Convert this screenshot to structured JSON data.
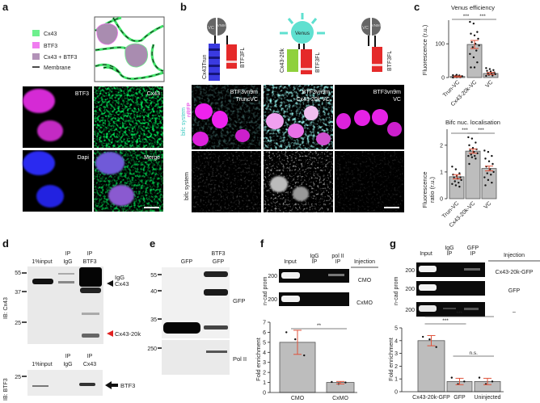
{
  "panels": {
    "a": {
      "label": "a",
      "legend": [
        {
          "text": "Cx43",
          "color": "#6ef08e"
        },
        {
          "text": "BTF3",
          "color": "#f07cf0"
        },
        {
          "text": "Cx43 + BTF3",
          "color": "#b292b8"
        },
        {
          "text": "Membrane",
          "color": "#111111"
        }
      ],
      "tiles": [
        "BTF3",
        "Cx43",
        "Dapi",
        "Merge"
      ]
    },
    "b": {
      "label": "b",
      "constructs": {
        "c1_left": "VC",
        "c1_right": "VN9m",
        "c1_bar1": "Cx43Trun",
        "c1_bar2": "BTF3FL",
        "venus": "Venus",
        "c2_bar1": "Cx43-20k",
        "c2_bar2": "BTF3FL",
        "c3_left": "VC",
        "c3_right": "VN9m",
        "c3_bar2": "BTF3FL"
      },
      "row_labels": {
        "bifc": "bifc system",
        "nrfp": "nRFP",
        "bifc2": "bifc system"
      },
      "tiles": [
        {
          "l1": "BTF3vn9m",
          "l2": "TruncVC"
        },
        {
          "l1": "BTF3vn9m",
          "l2": "Cx43-20k VC"
        },
        {
          "l1": "BTF3vn9m",
          "l2": "VC"
        }
      ]
    },
    "c": {
      "label": "c"
    },
    "d": {
      "label": "d",
      "top": {
        "lanes": [
          "1%input",
          "IP\nIgG",
          "IP\nBTF3"
        ],
        "lane1": "1%input",
        "lane2a": "IP",
        "lane2b": "IgG",
        "lane3a": "IP",
        "lane3b": "BTF3",
        "markers": [
          "55",
          "37",
          "25"
        ],
        "ib": "IB: Cx43",
        "igg": "IgG",
        "cx43": "Cx43",
        "cx43_20k": "Cx43-20k"
      },
      "bottom": {
        "lane1": "1%input",
        "lane2a": "IP",
        "lane2b": "IgG",
        "lane3a": "IP",
        "lane3b": "Cx43",
        "markers": [
          "25"
        ],
        "ib": "IB: BTF3",
        "btf3": "BTF3"
      }
    },
    "e": {
      "label": "e",
      "lane1": "GFP",
      "lane2a": "BTF3",
      "lane2b": "GFP",
      "markers": [
        "55",
        "40",
        "35",
        "250"
      ],
      "gfp": "GFP",
      "pol2": "Pol II"
    },
    "f": {
      "label": "f",
      "headers": {
        "input": "Input",
        "igg1": "IgG",
        "igg2": "IP",
        "pol1": "pol II",
        "pol2": "IP",
        "injection": "Injection"
      },
      "rows": [
        {
          "marker": "200",
          "injection": "CMO"
        },
        {
          "marker": "200",
          "injection": "CxMO"
        }
      ],
      "ylabel_gel": "n-cad prom"
    },
    "g": {
      "label": "g",
      "headers": {
        "input": "Input",
        "igg1": "IgG",
        "igg2": "IP",
        "gfp1": "GFP",
        "gfp2": "IP",
        "injection": "Injection"
      },
      "rows": [
        {
          "marker": "200",
          "injection": "Cx43-20k-GFP"
        },
        {
          "marker": "200",
          "injection": "GFP"
        },
        {
          "marker": "200",
          "injection": "–"
        }
      ],
      "ylabel_gel": "n-cad prom"
    }
  },
  "chart_data": [
    {
      "id": "c-top",
      "type": "bar",
      "title": "Venus efficiency",
      "ylabel": "Fluorescence (r.u.)",
      "categories": [
        "Trun-VC",
        "Cx43-20k-VC",
        "VC"
      ],
      "values": [
        3,
        98,
        12
      ],
      "error": [
        [
          1.5,
          4.5
        ],
        [
          86,
          110
        ],
        [
          9,
          15
        ]
      ],
      "points": [
        [
          0,
          1,
          1,
          2,
          2,
          3,
          3,
          4,
          4,
          5,
          6,
          7,
          8
        ],
        [
          165,
          160,
          135,
          130,
          125,
          115,
          105,
          100,
          95,
          90,
          80,
          70,
          60,
          45,
          30,
          30
        ],
        [
          28,
          25,
          22,
          20,
          18,
          15,
          13,
          12,
          10,
          8,
          6,
          5
        ]
      ],
      "yticks": [
        0,
        100
      ],
      "ylim": [
        0,
        170
      ],
      "significance": [
        {
          "from": 0,
          "to": 1,
          "label": "***"
        },
        {
          "from": 1,
          "to": 2,
          "label": "***"
        }
      ]
    },
    {
      "id": "c-bottom",
      "type": "bar",
      "title": "Bifc nuc. localisation",
      "ylabel": "Fluorescence ratio (r.u.)",
      "categories": [
        "Trun-VC",
        "Cx43-20k-VC",
        "VC"
      ],
      "values": [
        0.82,
        1.78,
        1.13
      ],
      "error": [
        [
          0.74,
          0.9
        ],
        [
          1.7,
          1.86
        ],
        [
          1.04,
          1.22
        ]
      ],
      "points": [
        [
          1.2,
          1.1,
          0.95,
          0.9,
          0.85,
          0.8,
          0.8,
          0.75,
          0.7,
          0.65,
          0.6,
          0.55,
          0.5,
          0.45
        ],
        [
          2.3,
          2.25,
          2.1,
          2.0,
          1.9,
          1.85,
          1.8,
          1.75,
          1.7,
          1.65,
          1.6,
          1.6,
          1.55,
          1.5,
          1.3
        ],
        [
          1.8,
          1.75,
          1.6,
          1.5,
          1.4,
          1.3,
          1.2,
          1.1,
          1.0,
          0.95,
          0.9,
          0.8,
          0.7,
          0.6,
          0.5
        ]
      ],
      "yticks": [
        0,
        1,
        2
      ],
      "ylim": [
        0,
        2.6
      ],
      "significance": [
        {
          "from": 0,
          "to": 1,
          "label": "***"
        },
        {
          "from": 1,
          "to": 2,
          "label": "***"
        }
      ]
    },
    {
      "id": "f",
      "type": "bar",
      "ylabel": "Fold enrichment",
      "categories": [
        "CMO",
        "CxMO"
      ],
      "values": [
        5,
        1
      ],
      "error": [
        [
          3.8,
          6.2
        ],
        [
          0.85,
          1.1
        ]
      ],
      "points": [
        [
          6.0,
          5.3,
          3.7
        ],
        [
          1.05,
          0.85,
          1.0
        ]
      ],
      "yticks": [
        0,
        1,
        2,
        3,
        4,
        5,
        6,
        7
      ],
      "ylim": [
        0,
        7
      ],
      "significance": [
        {
          "from": 0,
          "to": 1,
          "label": "**"
        }
      ]
    },
    {
      "id": "g",
      "type": "bar",
      "ylabel": "Fold enrichment",
      "categories": [
        "Cx43-20k-GFP",
        "GFP",
        "Uninjected"
      ],
      "values": [
        4,
        0.8,
        0.8
      ],
      "error": [
        [
          3.6,
          4.4
        ],
        [
          0.55,
          1.05
        ],
        [
          0.55,
          1.05
        ]
      ],
      "points": [
        [
          4.3,
          4.1,
          3.5
        ],
        [
          1.1,
          0.6,
          0.8
        ],
        [
          1.1,
          0.6,
          0.8
        ]
      ],
      "yticks": [
        0,
        1,
        2,
        3,
        4,
        5
      ],
      "ylim": [
        0,
        5
      ],
      "significance": [
        {
          "from": 0,
          "to": 1,
          "label": "***"
        },
        {
          "from": 0,
          "to": 2,
          "label": "***"
        },
        {
          "from": 1,
          "to": 2,
          "label": "n.s."
        }
      ]
    }
  ],
  "colors": {
    "bar": "#bdbdbd",
    "error": "#e0523a",
    "magenta": "#f23cf2",
    "green": "#39d639",
    "blue": "#2323ff",
    "cyan": "#5fe0d0",
    "red_arrow": "#e02020"
  }
}
